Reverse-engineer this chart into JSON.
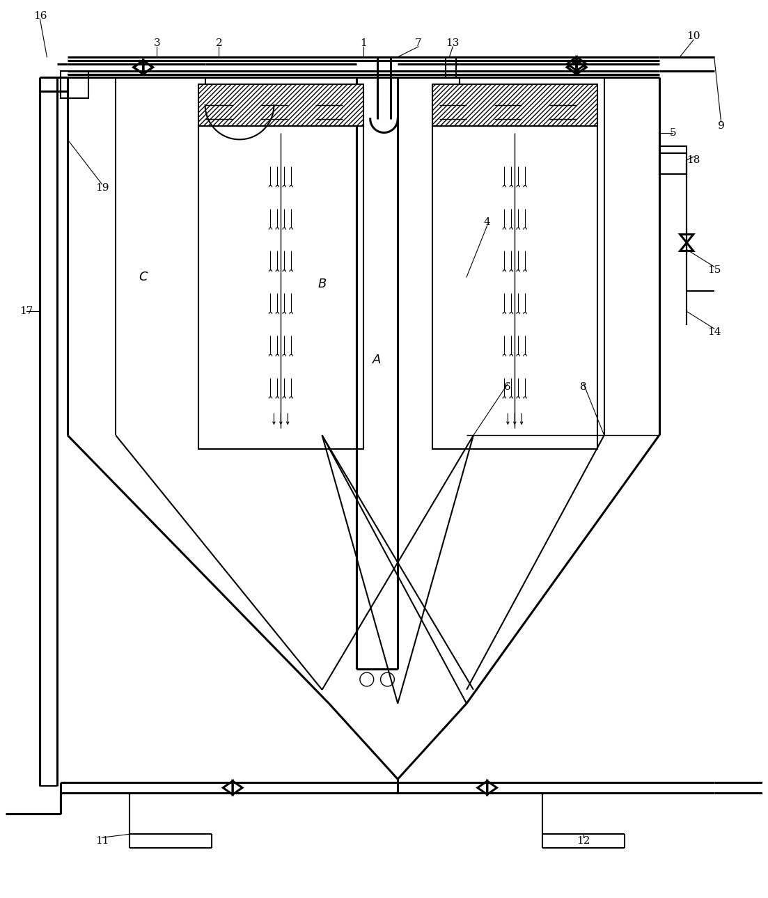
{
  "bg_color": "#ffffff",
  "line_color": "#000000",
  "figsize": [
    11.03,
    12.9
  ],
  "dpi": 100,
  "labels": [
    [
      52,
      124,
      "1"
    ],
    [
      31,
      124,
      "2"
    ],
    [
      22,
      124,
      "3"
    ],
    [
      70,
      98,
      "4"
    ],
    [
      97,
      111,
      "5"
    ],
    [
      73,
      74,
      "6"
    ],
    [
      60,
      124,
      "7"
    ],
    [
      84,
      74,
      "8"
    ],
    [
      104,
      112,
      "9"
    ],
    [
      100,
      125,
      "10"
    ],
    [
      14,
      8,
      "11"
    ],
    [
      84,
      8,
      "12"
    ],
    [
      65,
      124,
      "13"
    ],
    [
      103,
      82,
      "14"
    ],
    [
      103,
      91,
      "15"
    ],
    [
      5,
      128,
      "16"
    ],
    [
      3,
      85,
      "17"
    ],
    [
      100,
      107,
      "18"
    ],
    [
      14,
      103,
      "19"
    ]
  ]
}
